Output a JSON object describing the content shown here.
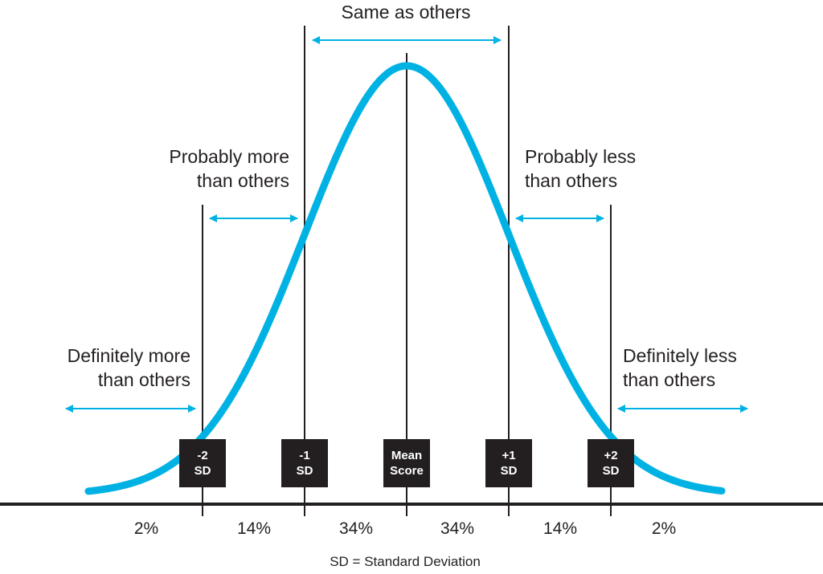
{
  "colors": {
    "curve": "#00b2e3",
    "arrow": "#00b2e3",
    "line": "#231f20",
    "box": "#231f20",
    "box_text": "#ffffff"
  },
  "labels": {
    "same": "Same as others",
    "prob_more_1": "Probably more",
    "prob_more_2": "than others",
    "prob_less_1": "Probably less",
    "prob_less_2": "than others",
    "def_more_1": "Definitely more",
    "def_more_2": "than others",
    "def_less_1": "Definitely less",
    "def_less_2": "than others"
  },
  "markers": [
    {
      "line1": "-2",
      "line2": "SD"
    },
    {
      "line1": "-1",
      "line2": "SD"
    },
    {
      "line1": "Mean",
      "line2": "Score"
    },
    {
      "line1": "+1",
      "line2": "SD"
    },
    {
      "line1": "+2",
      "line2": "SD"
    }
  ],
  "percents": [
    "2%",
    "14%",
    "34%",
    "34%",
    "14%",
    "2%"
  ],
  "footnote": "SD = Standard Deviation"
}
